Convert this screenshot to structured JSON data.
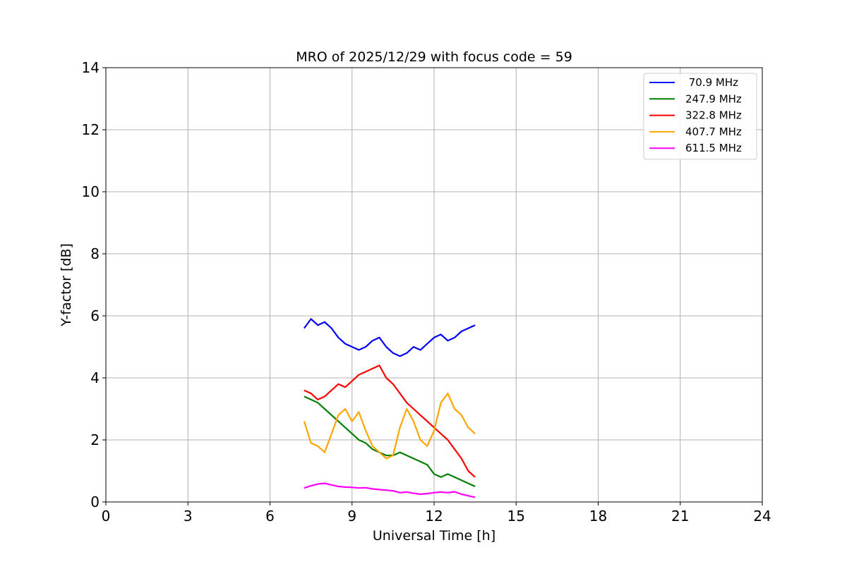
{
  "chart_data": {
    "type": "line",
    "title": "MRO of 2025/12/29 with focus code = 59",
    "xlabel": "Universal Time [h]",
    "ylabel": "Y-factor [dB]",
    "xlim": [
      0,
      24
    ],
    "ylim": [
      0,
      14
    ],
    "xticks": [
      "0",
      "3",
      "6",
      "9",
      "12",
      "15",
      "18",
      "21",
      "24"
    ],
    "yticks": [
      "0",
      "2",
      "4",
      "6",
      "8",
      "10",
      "12",
      "14"
    ],
    "grid": true,
    "legend_position": "top-right",
    "series": [
      {
        "name": " 70.9 MHz",
        "color": "#0000ff",
        "x": [
          7.25,
          7.5,
          7.75,
          8.0,
          8.25,
          8.5,
          8.75,
          9.0,
          9.25,
          9.5,
          9.75,
          10.0,
          10.25,
          10.5,
          10.75,
          11.0,
          11.25,
          11.5,
          11.75,
          12.0,
          12.25,
          12.5,
          12.75,
          13.0,
          13.25,
          13.5
        ],
        "values": [
          5.6,
          5.9,
          5.7,
          5.8,
          5.6,
          5.3,
          5.1,
          5.0,
          4.9,
          5.0,
          5.2,
          5.3,
          5.0,
          4.8,
          4.7,
          4.8,
          5.0,
          4.9,
          5.1,
          5.3,
          5.4,
          5.2,
          5.3,
          5.5,
          5.6,
          5.7
        ]
      },
      {
        "name": "247.9 MHz",
        "color": "#008000",
        "x": [
          7.25,
          7.5,
          7.75,
          8.0,
          8.25,
          8.5,
          8.75,
          9.0,
          9.25,
          9.5,
          9.75,
          10.0,
          10.25,
          10.5,
          10.75,
          11.0,
          11.25,
          11.5,
          11.75,
          12.0,
          12.25,
          12.5,
          12.75,
          13.0,
          13.25,
          13.5
        ],
        "values": [
          3.4,
          3.3,
          3.2,
          3.0,
          2.8,
          2.6,
          2.4,
          2.2,
          2.0,
          1.9,
          1.7,
          1.6,
          1.5,
          1.5,
          1.6,
          1.5,
          1.4,
          1.3,
          1.2,
          0.9,
          0.8,
          0.9,
          0.8,
          0.7,
          0.6,
          0.5
        ]
      },
      {
        "name": "322.8 MHz",
        "color": "#ff0000",
        "x": [
          7.25,
          7.5,
          7.75,
          8.0,
          8.25,
          8.5,
          8.75,
          9.0,
          9.25,
          9.5,
          9.75,
          10.0,
          10.25,
          10.5,
          10.75,
          11.0,
          11.25,
          11.5,
          11.75,
          12.0,
          12.25,
          12.5,
          12.75,
          13.0,
          13.25,
          13.5
        ],
        "values": [
          3.6,
          3.5,
          3.3,
          3.4,
          3.6,
          3.8,
          3.7,
          3.9,
          4.1,
          4.2,
          4.3,
          4.4,
          4.0,
          3.8,
          3.5,
          3.2,
          3.0,
          2.8,
          2.6,
          2.4,
          2.2,
          2.0,
          1.7,
          1.4,
          1.0,
          0.8
        ]
      },
      {
        "name": "407.7 MHz",
        "color": "#ffa500",
        "x": [
          7.25,
          7.5,
          7.75,
          8.0,
          8.25,
          8.5,
          8.75,
          9.0,
          9.25,
          9.5,
          9.75,
          10.0,
          10.25,
          10.5,
          10.75,
          11.0,
          11.25,
          11.5,
          11.75,
          12.0,
          12.25,
          12.5,
          12.75,
          13.0,
          13.25,
          13.5
        ],
        "values": [
          2.6,
          1.9,
          1.8,
          1.6,
          2.2,
          2.8,
          3.0,
          2.6,
          2.9,
          2.3,
          1.8,
          1.6,
          1.4,
          1.5,
          2.4,
          3.0,
          2.6,
          2.0,
          1.8,
          2.3,
          3.2,
          3.5,
          3.0,
          2.8,
          2.4,
          2.2
        ]
      },
      {
        "name": "611.5 MHz",
        "color": "#ff00ff",
        "x": [
          7.25,
          7.5,
          7.75,
          8.0,
          8.25,
          8.5,
          8.75,
          9.0,
          9.25,
          9.5,
          9.75,
          10.0,
          10.25,
          10.5,
          10.75,
          11.0,
          11.25,
          11.5,
          11.75,
          12.0,
          12.25,
          12.5,
          12.75,
          13.0,
          13.25,
          13.5
        ],
        "values": [
          0.45,
          0.52,
          0.58,
          0.6,
          0.55,
          0.5,
          0.48,
          0.47,
          0.45,
          0.46,
          0.42,
          0.4,
          0.38,
          0.36,
          0.3,
          0.32,
          0.28,
          0.25,
          0.27,
          0.3,
          0.32,
          0.3,
          0.33,
          0.25,
          0.2,
          0.15
        ]
      }
    ]
  }
}
